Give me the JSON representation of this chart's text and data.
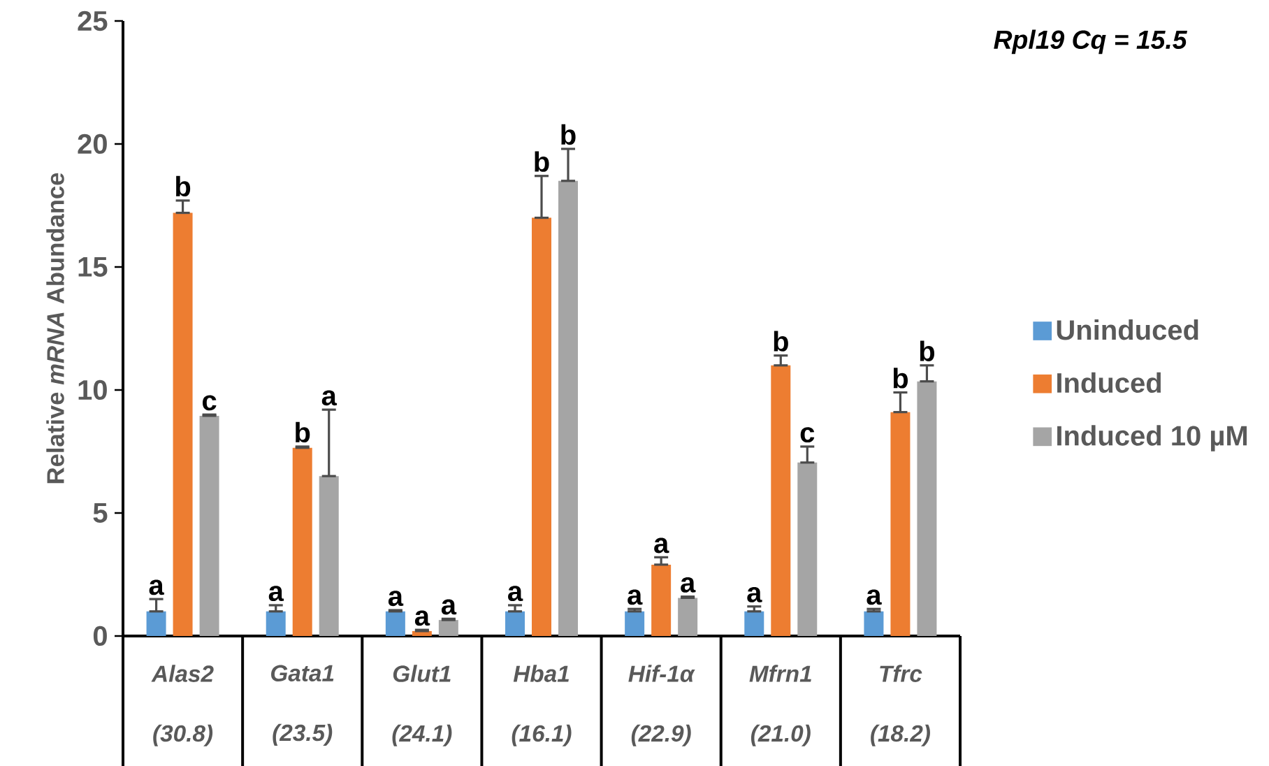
{
  "chart_data": {
    "type": "bar",
    "categories": [
      "Alas2 (30.8)",
      "Gata1 (23.5)",
      "Glut1 (24.1)",
      "Hba1 (16.1)",
      "Hif-1α (22.9)",
      "Mfrn1 (21.0)",
      "Tfrc (18.2)"
    ],
    "series": [
      {
        "name": "Uninduced",
        "color": "#5b9bd5",
        "values": [
          1.0,
          1.0,
          1.0,
          1.0,
          1.0,
          1.0,
          1.0
        ],
        "errors": [
          [
            1.0,
            1.5
          ],
          [
            1.0,
            1.25
          ],
          [
            1.0,
            1.05
          ],
          [
            1.0,
            1.25
          ],
          [
            1.0,
            1.1
          ],
          [
            1.0,
            1.2
          ],
          [
            1.0,
            1.1
          ]
        ],
        "value_labels": [
          "a",
          "a",
          "a",
          "a",
          "a",
          "a",
          "a"
        ]
      },
      {
        "name": "Induced",
        "color": "#ed7d31",
        "values": [
          17.2,
          7.65,
          0.2,
          17.0,
          2.9,
          11.0,
          9.1
        ],
        "errors": [
          [
            17.2,
            17.7
          ],
          [
            7.65,
            7.7
          ],
          [
            0.2,
            0.25
          ],
          [
            17.0,
            18.7
          ],
          [
            2.9,
            3.2
          ],
          [
            11.0,
            11.4
          ],
          [
            9.1,
            9.9
          ]
        ],
        "value_labels": [
          "b",
          "b",
          "a",
          "b",
          "a",
          "b",
          "b"
        ]
      },
      {
        "name": "Induced 10 µM",
        "color": "#a5a5a5",
        "values": [
          8.95,
          6.5,
          0.65,
          18.5,
          1.55,
          7.05,
          10.35
        ],
        "errors": [
          [
            8.95,
            9.0
          ],
          [
            6.5,
            9.2
          ],
          [
            0.65,
            0.7
          ],
          [
            18.5,
            19.8
          ],
          [
            1.55,
            1.6
          ],
          [
            7.05,
            7.7
          ],
          [
            10.35,
            11.0
          ]
        ],
        "value_labels": [
          "c",
          "a",
          "a",
          "b",
          "a",
          "c",
          "b"
        ]
      }
    ],
    "ylabel": "Relative *mRNA* Abundance",
    "ylim": [
      0,
      25
    ],
    "yticks": [
      0,
      5,
      10,
      15,
      20,
      25
    ],
    "legend": "right",
    "annotations": [
      "Rpl19 Cq = 15.5"
    ]
  }
}
